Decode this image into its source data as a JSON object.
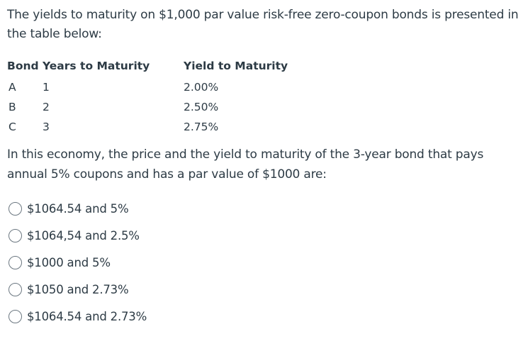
{
  "question": {
    "intro": "The yields to maturity on $1,000 par value risk-free zero-coupon bonds is presented in the table below:",
    "table": {
      "headers": [
        "Bond Years to Maturity",
        "Yield to Maturity"
      ],
      "rows": [
        {
          "bond": "A",
          "years": "1",
          "yield": "2.00%"
        },
        {
          "bond": "B",
          "years": "2",
          "yield": "2.50%"
        },
        {
          "bond": "C",
          "years": "3",
          "yield": "2.75%"
        }
      ]
    },
    "prompt": "In this economy, the price and the yield to maturity of the 3-year bond that pays annual 5% coupons and has a par value of $1000 are:",
    "options": [
      "$1064.54 and 5%",
      "$1064,54 and 2.5%",
      "$1000 and 5%",
      "$1050 and 2.73%",
      "$1064.54 and 2.73%"
    ]
  }
}
